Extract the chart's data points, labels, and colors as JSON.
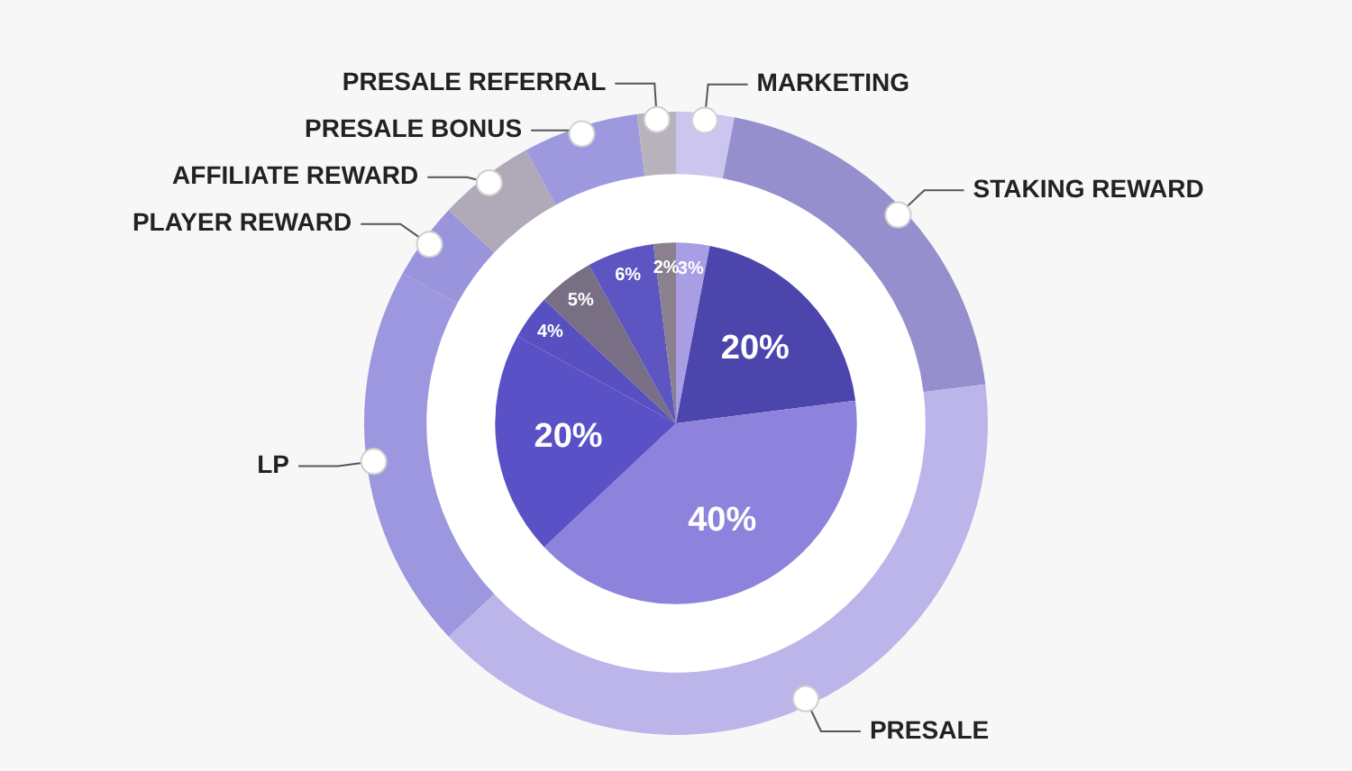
{
  "chart_data": {
    "type": "pie",
    "categories": [
      "MARKETING",
      "STAKING REWARD",
      "PRESALE",
      "LP",
      "PLAYER REWARD",
      "AFFILIATE REWARD",
      "PRESALE BONUS",
      "PRESALE REFERRAL"
    ],
    "series": [
      {
        "type": "donut",
        "values": [
          3,
          20,
          40,
          20,
          4,
          5,
          6,
          2
        ],
        "colors": [
          "#cbc5f0",
          "#9590cd",
          "#bcb5e9",
          "#9c97de",
          "#9a94dc",
          "#b0aab8",
          "#9e99df",
          "#b8b2bd"
        ]
      },
      {
        "values": [
          3,
          20,
          40,
          20,
          4,
          5,
          6,
          2
        ],
        "colors": [
          "#a99ee4",
          "#4b45ac",
          "#8d83dc",
          "#5a51c6",
          "#5850c0",
          "#786f84",
          "#5c55c2",
          "#8a8090"
        ],
        "value_labels": [
          "3%",
          "20%",
          "40%",
          "20%",
          "4%",
          "5%",
          "6%",
          "2%"
        ]
      }
    ],
    "legend": false
  }
}
